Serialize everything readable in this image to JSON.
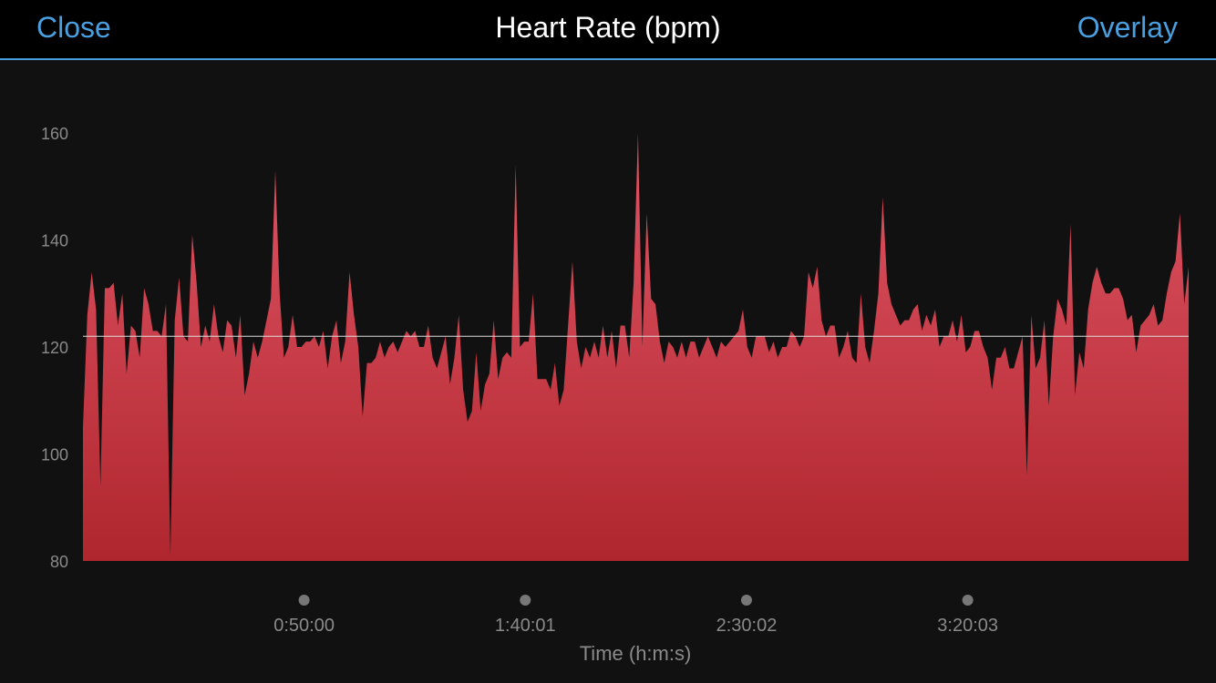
{
  "header": {
    "close_label": "Close",
    "title": "Heart Rate (bpm)",
    "overlay_label": "Overlay"
  },
  "colors": {
    "accent": "#4a9fe0",
    "fill_top": "#e05565",
    "fill_bottom": "#b0262e",
    "reference_line": "#dddddd",
    "marker": "#777777"
  },
  "chart_data": {
    "type": "area",
    "title": "Heart Rate (bpm)",
    "xlabel": "Time (h:m:s)",
    "ylabel": "",
    "ylim": [
      80,
      170
    ],
    "yticks": [
      80,
      100,
      120,
      140,
      160
    ],
    "xlim_seconds": [
      0,
      15000
    ],
    "xticks": [
      {
        "seconds": 3000,
        "label": "0:50:00"
      },
      {
        "seconds": 6001,
        "label": "1:40:01"
      },
      {
        "seconds": 9002,
        "label": "2:30:02"
      },
      {
        "seconds": 12003,
        "label": "3:20:03"
      }
    ],
    "reference_line": 122,
    "grid": false,
    "series": [
      {
        "values": [
          105,
          126,
          134,
          127,
          94,
          131,
          131,
          132,
          124,
          130,
          115,
          124,
          123,
          118,
          131,
          128,
          123,
          123,
          122,
          128,
          81,
          125,
          133,
          122,
          121,
          141,
          132,
          120,
          124,
          121,
          128,
          122,
          119,
          125,
          124,
          118,
          126,
          111,
          115,
          121,
          118,
          121,
          125,
          129,
          153,
          130,
          118,
          120,
          126,
          120,
          120,
          121,
          121,
          122,
          120,
          123,
          116,
          122,
          125,
          117,
          121,
          134,
          126,
          120,
          107,
          117,
          117,
          118,
          121,
          118,
          120,
          121,
          119,
          121,
          123,
          122,
          123,
          120,
          120,
          124,
          118,
          116,
          119,
          122,
          113,
          118,
          126,
          112,
          106,
          108,
          119,
          108,
          113,
          115,
          125,
          114,
          118,
          119,
          118,
          154,
          120,
          121,
          121,
          130,
          114,
          114,
          114,
          112,
          117,
          109,
          112,
          124,
          136,
          121,
          116,
          120,
          118,
          121,
          118,
          124,
          118,
          123,
          116,
          124,
          124,
          118,
          132,
          160,
          120,
          145,
          129,
          128,
          121,
          117,
          121,
          120,
          118,
          121,
          118,
          121,
          121,
          118,
          120,
          122,
          120,
          118,
          121,
          120,
          121,
          122,
          123,
          127,
          120,
          118,
          122,
          122,
          122,
          119,
          121,
          118,
          120,
          120,
          123,
          122,
          120,
          122,
          134,
          131,
          135,
          125,
          122,
          124,
          124,
          118,
          120,
          123,
          118,
          117,
          130,
          120,
          117,
          123,
          130,
          148,
          132,
          128,
          126,
          124,
          125,
          125,
          127,
          128,
          123,
          126,
          124,
          127,
          120,
          122,
          122,
          125,
          121,
          126,
          119,
          120,
          123,
          123,
          120,
          118,
          112,
          118,
          118,
          120,
          116,
          116,
          119,
          122,
          96,
          126,
          116,
          118,
          125,
          109,
          122,
          129,
          127,
          124,
          143,
          111,
          119,
          116,
          127,
          132,
          135,
          132,
          130,
          130,
          131,
          131,
          129,
          125,
          126,
          119,
          124,
          125,
          126,
          128,
          124,
          125,
          130,
          134,
          136,
          145,
          128,
          135
        ]
      }
    ]
  }
}
